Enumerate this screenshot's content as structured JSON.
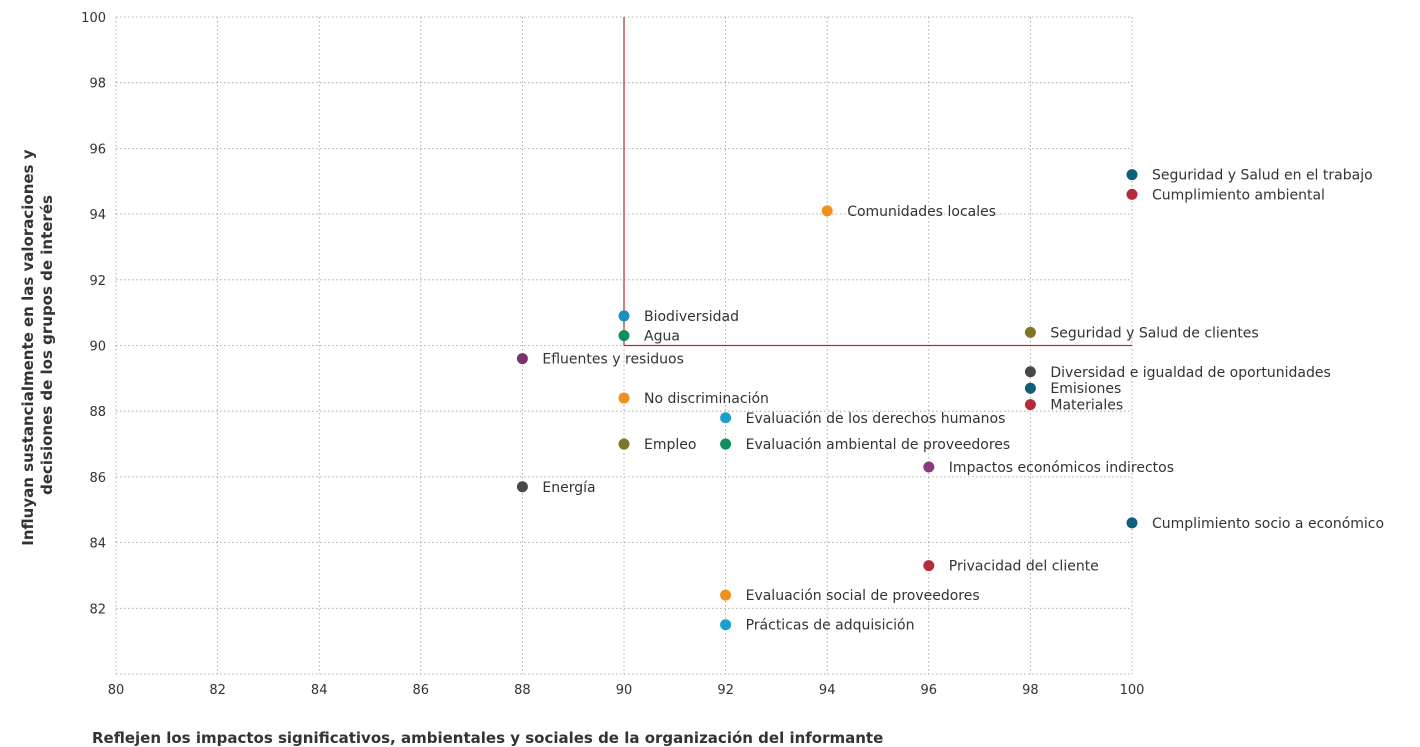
{
  "chart_data": {
    "type": "scatter",
    "title": "",
    "xlabel": "Reflejen los impactos significativos, ambientales y sociales de la organización del informante",
    "ylabel_lines": [
      "Influyan sustancialmente en las valoraciones y",
      "decisiones de los grupos de interés"
    ],
    "xlim": [
      80,
      100
    ],
    "ylim": [
      80,
      100
    ],
    "xticks": [
      "80",
      "82",
      "84",
      "86",
      "88",
      "90",
      "92",
      "94",
      "96",
      "98",
      "100"
    ],
    "yticks": [
      "82",
      "84",
      "86",
      "88",
      "90",
      "92",
      "94",
      "96",
      "98",
      "100"
    ],
    "grid": true,
    "threshold": {
      "x": 90,
      "y": 90,
      "color": "#b52a3c"
    },
    "points": [
      {
        "label": "Seguridad y Salud en el trabajo",
        "x": 100,
        "y": 95.2,
        "color": "#0e5f7a"
      },
      {
        "label": "Cumplimiento ambiental",
        "x": 100,
        "y": 94.6,
        "color": "#b52a3c"
      },
      {
        "label": "Comunidades locales",
        "x": 94,
        "y": 94.1,
        "color": "#f0901e"
      },
      {
        "label": "Biodiversidad",
        "x": 90,
        "y": 90.9,
        "color": "#1b8fbd"
      },
      {
        "label": "Agua",
        "x": 90,
        "y": 90.3,
        "color": "#108f5e"
      },
      {
        "label": "Seguridad y Salud de clientes",
        "x": 98,
        "y": 90.4,
        "color": "#7f7624"
      },
      {
        "label": "Efluentes y residuos",
        "x": 88,
        "y": 89.6,
        "color": "#7a336f"
      },
      {
        "label": "Diversidad e igualdad de oportunidades",
        "x": 98,
        "y": 89.2,
        "color": "#484848"
      },
      {
        "label": "Emisiones",
        "x": 98,
        "y": 88.7,
        "color": "#0e5f7a"
      },
      {
        "label": "Materiales",
        "x": 98,
        "y": 88.2,
        "color": "#b52a3c"
      },
      {
        "label": "No discriminación",
        "x": 90,
        "y": 88.4,
        "color": "#f0901e"
      },
      {
        "label": "Evaluación de los derechos humanos",
        "x": 92,
        "y": 87.8,
        "color": "#1b9ec9"
      },
      {
        "label": "Empleo",
        "x": 90,
        "y": 87.0,
        "color": "#7f7624"
      },
      {
        "label": "Evaluación ambiental de proveedores",
        "x": 92,
        "y": 87.0,
        "color": "#108f5e"
      },
      {
        "label": "Impactos económicos indirectos",
        "x": 96,
        "y": 86.3,
        "color": "#8a3b80"
      },
      {
        "label": "Energía",
        "x": 88,
        "y": 85.7,
        "color": "#484848"
      },
      {
        "label": "Cumplimiento socio a económico",
        "x": 100,
        "y": 84.6,
        "color": "#0e5f7a"
      },
      {
        "label": "Privacidad del cliente",
        "x": 96,
        "y": 83.3,
        "color": "#b52a3c"
      },
      {
        "label": "Evaluación social de proveedores",
        "x": 92,
        "y": 82.4,
        "color": "#f0901e"
      },
      {
        "label": "Prácticas de adquisición",
        "x": 92,
        "y": 81.5,
        "color": "#1b9ec9"
      }
    ]
  }
}
